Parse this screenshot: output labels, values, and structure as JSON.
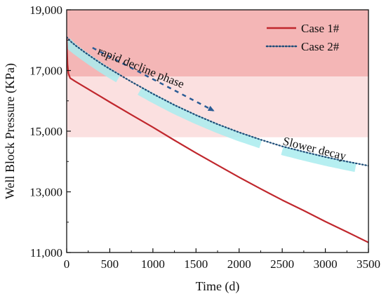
{
  "chart_data": {
    "type": "line",
    "xlabel": "Time (d)",
    "ylabel": "Well Block Pressure (KPa)",
    "xlim": [
      0,
      3500
    ],
    "ylim": [
      11000,
      19000
    ],
    "x_ticks": [
      0,
      500,
      1000,
      1500,
      2000,
      2500,
      3000,
      3500
    ],
    "x_tick_labels": [
      "0",
      "500",
      "1000",
      "1500",
      "2000",
      "2500",
      "3000",
      "3500"
    ],
    "y_ticks": [
      11000,
      13000,
      15000,
      17000,
      19000
    ],
    "y_tick_labels": [
      "11,000",
      "13,000",
      "15,000",
      "17,000",
      "19,000"
    ],
    "grid": false,
    "legend_position": "top-right",
    "series": [
      {
        "name": "Case 1#",
        "color": "#c0272d",
        "style": "solid",
        "points": [
          [
            0,
            18100
          ],
          [
            5,
            17600
          ],
          [
            10,
            17200
          ],
          [
            20,
            16900
          ],
          [
            40,
            16750
          ],
          [
            100,
            16640
          ],
          [
            200,
            16470
          ],
          [
            300,
            16300
          ],
          [
            400,
            16130
          ],
          [
            500,
            15960
          ],
          [
            750,
            15540
          ],
          [
            1000,
            15130
          ],
          [
            1250,
            14700
          ],
          [
            1500,
            14280
          ],
          [
            1750,
            13880
          ],
          [
            2000,
            13480
          ],
          [
            2250,
            13100
          ],
          [
            2500,
            12730
          ],
          [
            2750,
            12380
          ],
          [
            3000,
            12020
          ],
          [
            3250,
            11680
          ],
          [
            3500,
            11330
          ]
        ]
      },
      {
        "name": "Case 2#",
        "color": "#1f4e79",
        "style": "dotted",
        "points": [
          [
            0,
            18100
          ],
          [
            50,
            17950
          ],
          [
            100,
            17830
          ],
          [
            200,
            17620
          ],
          [
            300,
            17420
          ],
          [
            400,
            17230
          ],
          [
            500,
            17050
          ],
          [
            750,
            16630
          ],
          [
            1000,
            16230
          ],
          [
            1250,
            15860
          ],
          [
            1500,
            15530
          ],
          [
            1750,
            15230
          ],
          [
            2000,
            14960
          ],
          [
            2250,
            14720
          ],
          [
            2500,
            14500
          ],
          [
            2750,
            14320
          ],
          [
            3000,
            14150
          ],
          [
            3250,
            14000
          ],
          [
            3500,
            13860
          ]
        ]
      }
    ],
    "bands": [
      {
        "y_from": 16800,
        "y_to": 19000,
        "color": "#f4b6b6"
      },
      {
        "y_from": 14800,
        "y_to": 16800,
        "color": "#fbe0e0"
      }
    ],
    "highlight_segments": [
      {
        "x_from": 0,
        "x_to": 600
      },
      {
        "x_from": 850,
        "x_to": 2250
      },
      {
        "x_from": 2500,
        "x_to": 3350
      }
    ],
    "highlight_color": "#a9ecef",
    "annotations": [
      {
        "text": "rapid decline phase",
        "x": 350,
        "y": 17550,
        "rotate_deg": 22
      },
      {
        "text": "Slower decay",
        "x": 2500,
        "y": 14560,
        "rotate_deg": 14
      }
    ],
    "arrow": {
      "x_from": 300,
      "y_from": 17750,
      "x_to": 1700,
      "y_to": 15680,
      "color": "#2a5c95"
    }
  }
}
